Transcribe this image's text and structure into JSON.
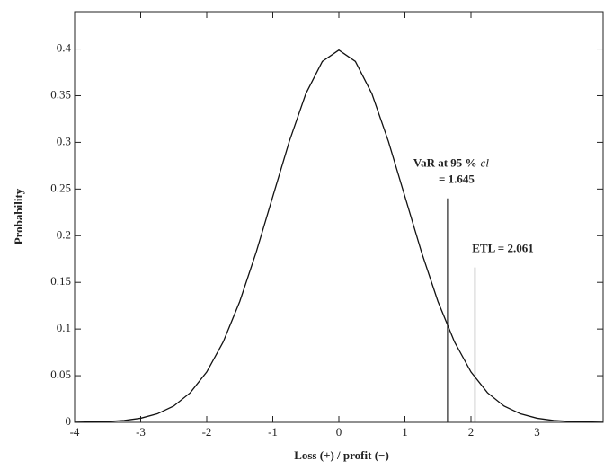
{
  "chart_data": {
    "type": "line",
    "x_label": "Loss (+) / profit (−)",
    "y_label": "Probability",
    "x": [
      -4,
      -3.75,
      -3.5,
      -3.25,
      -3,
      -2.75,
      -2.5,
      -2.25,
      -2,
      -1.75,
      -1.5,
      -1.25,
      -1,
      -0.75,
      -0.5,
      -0.25,
      0,
      0.25,
      0.5,
      0.75,
      1,
      1.25,
      1.5,
      1.75,
      2,
      2.25,
      2.5,
      2.75,
      3,
      3.25,
      3.5,
      3.75,
      4
    ],
    "series": [
      {
        "color": "#111111",
        "values": [
          0.0001,
          0.0004,
          0.0009,
          0.002,
          0.0044,
          0.0091,
          0.0175,
          0.0317,
          0.054,
          0.0863,
          0.1295,
          0.1826,
          0.242,
          0.3011,
          0.3521,
          0.3867,
          0.3989,
          0.3867,
          0.3521,
          0.3011,
          0.242,
          0.1826,
          0.1295,
          0.0863,
          0.054,
          0.0317,
          0.0175,
          0.0091,
          0.0044,
          0.002,
          0.0009,
          0.0004,
          0.0001
        ]
      }
    ],
    "xlim": [
      -4,
      4
    ],
    "ylim": [
      0,
      0.44
    ],
    "xticks": [
      -4,
      -3,
      -2,
      -1,
      0,
      1,
      2,
      3
    ],
    "yticks": [
      0,
      0.05,
      0.1,
      0.15,
      0.2,
      0.25,
      0.3,
      0.35,
      0.4
    ],
    "annotations": [
      {
        "x": 1.645,
        "top": 0.24,
        "label": "VaR at 95 %",
        "label_italic": "cl",
        "label2": "= 1.645"
      },
      {
        "x": 2.061,
        "top": 0.166,
        "label": "ETL = 2.061"
      }
    ]
  }
}
